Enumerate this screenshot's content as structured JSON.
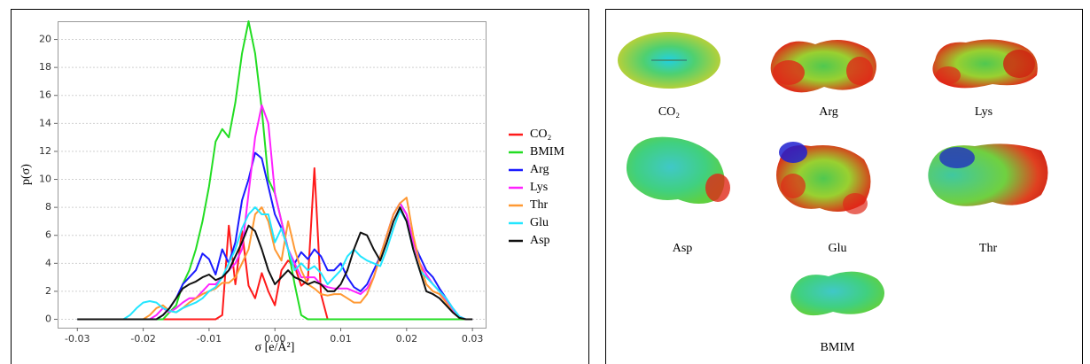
{
  "chart_data": {
    "type": "line",
    "x_label": "σ [e/Å²]",
    "y_label": "p(σ)",
    "x": [
      -0.03,
      -0.029,
      -0.028,
      -0.027,
      -0.026,
      -0.025,
      -0.024,
      -0.023,
      -0.022,
      -0.021,
      -0.02,
      -0.019,
      -0.018,
      -0.017,
      -0.016,
      -0.015,
      -0.014,
      -0.013,
      -0.012,
      -0.011,
      -0.01,
      -0.009,
      -0.008,
      -0.007,
      -0.006,
      -0.005,
      -0.004,
      -0.003,
      -0.002,
      -0.001,
      0,
      0.001,
      0.002,
      0.003,
      0.004,
      0.005,
      0.006,
      0.007,
      0.008,
      0.009,
      0.01,
      0.011,
      0.012,
      0.013,
      0.014,
      0.015,
      0.016,
      0.017,
      0.018,
      0.019,
      0.02,
      0.021,
      0.022,
      0.023,
      0.024,
      0.025,
      0.026,
      0.027,
      0.028,
      0.029,
      0.03
    ],
    "series": [
      {
        "name": "CO₂",
        "color": "#ff1a1a",
        "values": [
          0,
          0,
          0,
          0,
          0,
          0,
          0,
          0,
          0,
          0,
          0,
          0,
          0,
          0,
          0,
          0,
          0,
          0,
          0,
          0,
          0,
          0,
          0.3,
          6.7,
          2.5,
          6.3,
          2.4,
          1.5,
          3.3,
          2,
          1,
          3.5,
          4.2,
          3.8,
          2.4,
          2.8,
          10.8,
          1.8,
          0,
          0,
          0,
          0,
          0,
          0,
          0,
          0,
          0,
          0,
          0,
          0,
          0,
          0,
          0,
          0,
          0,
          0,
          0,
          0,
          0,
          0,
          0
        ]
      },
      {
        "name": "BMIM",
        "color": "#22dd22",
        "values": [
          0,
          0,
          0,
          0,
          0,
          0,
          0,
          0,
          0,
          0,
          0,
          0,
          0,
          0,
          0.5,
          1,
          2.5,
          3.5,
          5,
          7,
          9.5,
          12.7,
          13.6,
          13,
          15.5,
          19,
          21.3,
          19,
          15,
          10,
          9,
          7,
          5,
          2.5,
          0.3,
          0,
          0,
          0,
          0,
          0,
          0,
          0,
          0,
          0,
          0,
          0,
          0,
          0,
          0,
          0,
          0,
          0,
          0,
          0,
          0,
          0,
          0,
          0,
          0,
          0,
          0
        ]
      },
      {
        "name": "Arg",
        "color": "#1a1aff",
        "values": [
          0,
          0,
          0,
          0,
          0,
          0,
          0,
          0,
          0,
          0,
          0,
          0,
          0,
          0.3,
          0.8,
          1.5,
          2.5,
          3,
          3.5,
          4.7,
          4.3,
          3.2,
          5,
          4,
          5.5,
          8.5,
          10,
          11.9,
          11.5,
          9.5,
          7.5,
          6.5,
          5,
          4,
          4.8,
          4.3,
          5,
          4.5,
          3.5,
          3.5,
          4,
          3,
          2.3,
          2,
          2.5,
          3.5,
          4.5,
          6,
          7.5,
          8.3,
          7.5,
          5.5,
          4.5,
          3.5,
          3,
          2.2,
          1.5,
          0.8,
          0.2,
          0,
          0
        ]
      },
      {
        "name": "Lys",
        "color": "#ff22ff",
        "values": [
          0,
          0,
          0,
          0,
          0,
          0,
          0,
          0,
          0,
          0,
          0,
          0,
          0.3,
          0.8,
          0.5,
          0.8,
          1.2,
          1.5,
          1.5,
          2,
          2.5,
          2.5,
          3,
          3.5,
          4,
          5,
          9,
          13,
          15.3,
          14,
          9,
          7,
          5,
          4,
          3,
          3,
          3,
          2.5,
          2.3,
          2.2,
          2.2,
          2.2,
          2,
          1.8,
          2.2,
          3,
          4.5,
          6,
          7.5,
          8.3,
          7.5,
          5.5,
          4,
          3.2,
          2.5,
          2,
          1.3,
          0.7,
          0.2,
          0,
          0
        ]
      },
      {
        "name": "Thr",
        "color": "#ff9933",
        "values": [
          0,
          0,
          0,
          0,
          0,
          0,
          0,
          0,
          0,
          0,
          0,
          0.3,
          0.8,
          1,
          0.6,
          0.5,
          0.8,
          1.2,
          1.5,
          1.8,
          2,
          2.2,
          2.6,
          2.6,
          3,
          4,
          5,
          7.5,
          8,
          7,
          5,
          4.2,
          7,
          5,
          3.5,
          2.5,
          2.2,
          1.8,
          1.7,
          1.8,
          1.8,
          1.5,
          1.2,
          1.2,
          1.8,
          3,
          4.5,
          6,
          7.5,
          8.3,
          8.7,
          6,
          4,
          2.5,
          2,
          1.8,
          1.2,
          0.5,
          0.1,
          0,
          0
        ]
      },
      {
        "name": "Glu",
        "color": "#22e6ff",
        "values": [
          0,
          0,
          0,
          0,
          0,
          0,
          0,
          0,
          0.3,
          0.8,
          1.2,
          1.3,
          1.2,
          0.8,
          0.6,
          0.5,
          0.8,
          1,
          1.2,
          1.5,
          2,
          2.3,
          3,
          4,
          5,
          6.5,
          7.5,
          8,
          7.5,
          7.5,
          5.5,
          6.5,
          5,
          3.5,
          4,
          3.5,
          3.8,
          3.3,
          2.5,
          3,
          3.5,
          4.5,
          5,
          4.5,
          4.2,
          4,
          3.8,
          5,
          6.5,
          7.8,
          7,
          5,
          3.5,
          3,
          2.5,
          2,
          1.5,
          0.8,
          0.2,
          0,
          0
        ]
      },
      {
        "name": "Asp",
        "color": "#111111",
        "values": [
          0,
          0,
          0,
          0,
          0,
          0,
          0,
          0,
          0,
          0,
          0,
          0,
          0,
          0.3,
          0.8,
          1.5,
          2.2,
          2.5,
          2.7,
          3,
          3.2,
          2.8,
          3,
          3.5,
          4.5,
          5.5,
          6.7,
          6.3,
          5,
          3.5,
          2.5,
          3,
          3.5,
          3,
          2.8,
          2.5,
          2.7,
          2.5,
          2,
          2,
          2.5,
          3.5,
          5,
          6.2,
          6,
          5,
          4.2,
          5.5,
          7,
          8,
          7,
          5,
          3.5,
          2,
          1.8,
          1.5,
          1,
          0.5,
          0.1,
          0,
          0
        ]
      }
    ],
    "xlim": [
      -0.033,
      0.032
    ],
    "ylim": [
      -0.6,
      21.3
    ],
    "xticks": [
      -0.03,
      -0.02,
      -0.01,
      {
        "value": 0,
        "label": "0.00"
      },
      0.01,
      0.02,
      0.03
    ],
    "yticks": [
      0,
      2,
      4,
      6,
      8,
      10,
      12,
      14,
      16,
      18,
      20
    ],
    "grid": true
  },
  "panel": {
    "labels": [
      "CO₂",
      "Arg",
      "Lys",
      "Asp",
      "Glu",
      "Thr",
      "BMIM"
    ]
  }
}
